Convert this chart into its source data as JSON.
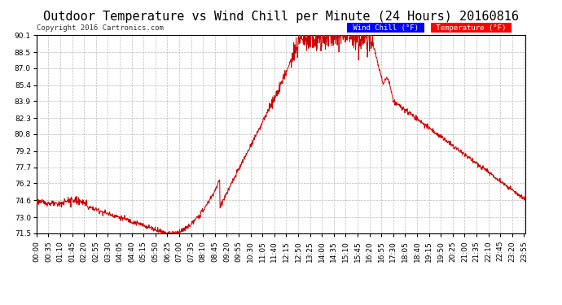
{
  "title": "Outdoor Temperature vs Wind Chill per Minute (24 Hours) 20160816",
  "copyright": "Copyright 2016 Cartronics.com",
  "legend_wind_chill": "Wind Chill (°F)",
  "legend_temperature": "Temperature (°F)",
  "line_color": "#cc0000",
  "background_color": "#ffffff",
  "grid_color": "#bbbbbb",
  "ylim": [
    71.5,
    90.1
  ],
  "yticks": [
    71.5,
    73.0,
    74.6,
    76.2,
    77.7,
    79.2,
    80.8,
    82.3,
    83.9,
    85.4,
    87.0,
    88.5,
    90.1
  ],
  "title_fontsize": 11,
  "tick_fontsize": 6.5,
  "xlabel_rotation": 90,
  "num_points": 1440,
  "tick_step": 35
}
